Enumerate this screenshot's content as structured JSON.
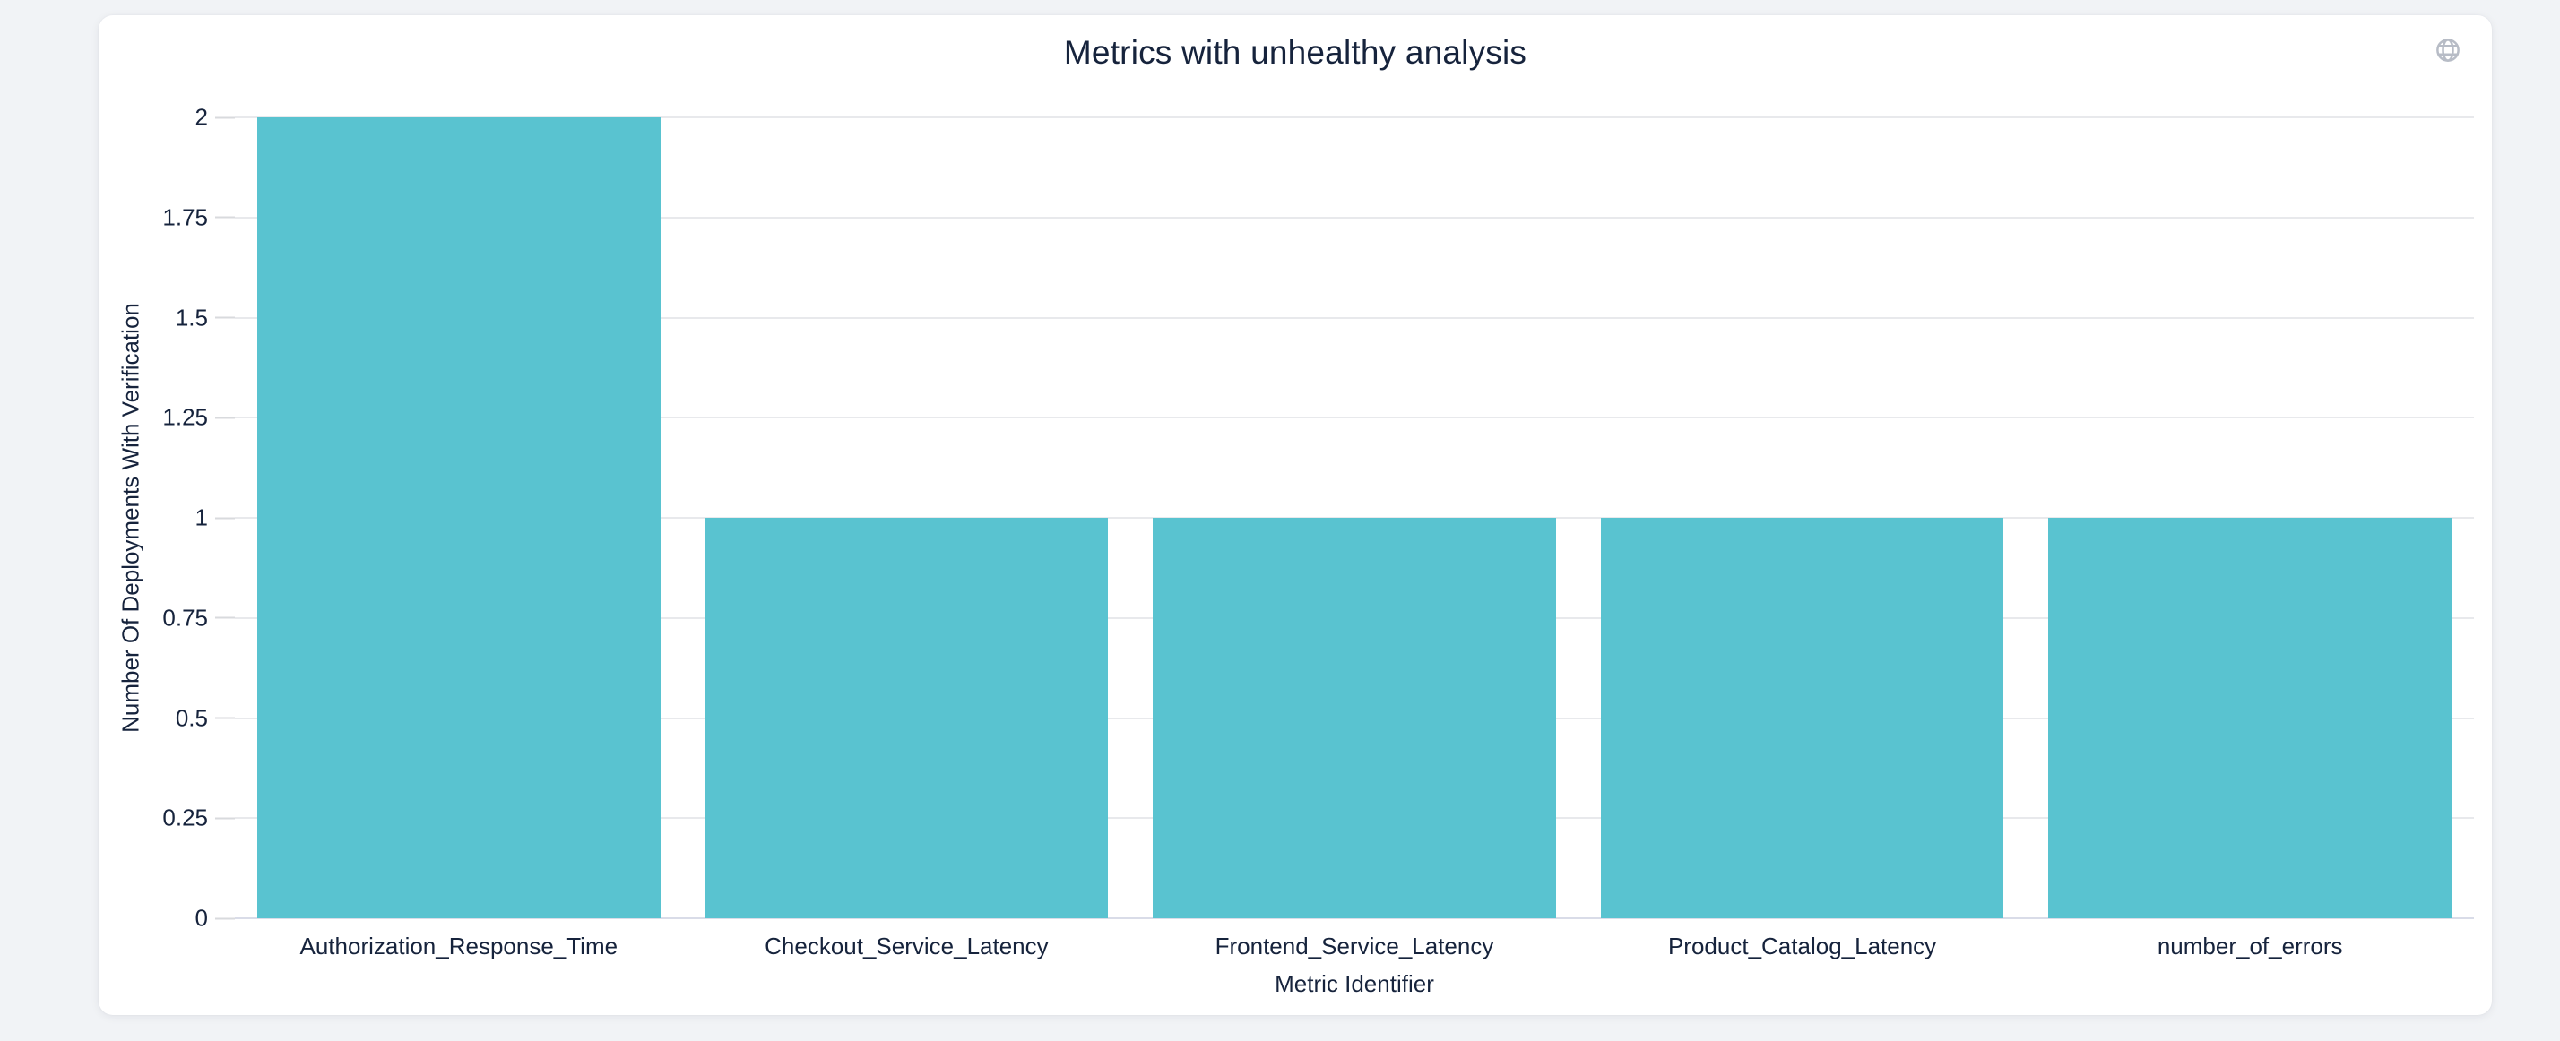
{
  "header": {
    "title": "Metrics with unhealthy analysis",
    "globe_icon": "globe"
  },
  "theme": {
    "page_background": "#f1f3f6",
    "card_background": "#ffffff",
    "text_color": "#16233c",
    "bar_color": "#59c3d0",
    "gridline_color": "#e8e9ec",
    "axis_line_color": "#d9dce8",
    "globe_icon_color": "#b7bcc6"
  },
  "chart_data": {
    "type": "bar",
    "title": "Metrics with unhealthy analysis",
    "categories": [
      "Authorization_Response_Time",
      "Checkout_Service_Latency",
      "Frontend_Service_Latency",
      "Product_Catalog_Latency",
      "number_of_errors"
    ],
    "values": [
      2,
      1,
      1,
      1,
      1
    ],
    "xlabel": "Metric Identifier",
    "ylabel": "Number Of Deployments With Verification",
    "ylim": [
      0,
      2
    ],
    "yticks": [
      "0",
      "0.25",
      "0.5",
      "0.75",
      "1",
      "1.25",
      "1.5",
      "1.75",
      "2"
    ],
    "grid": true,
    "legend": false,
    "bar_color": "#59c3d0"
  }
}
